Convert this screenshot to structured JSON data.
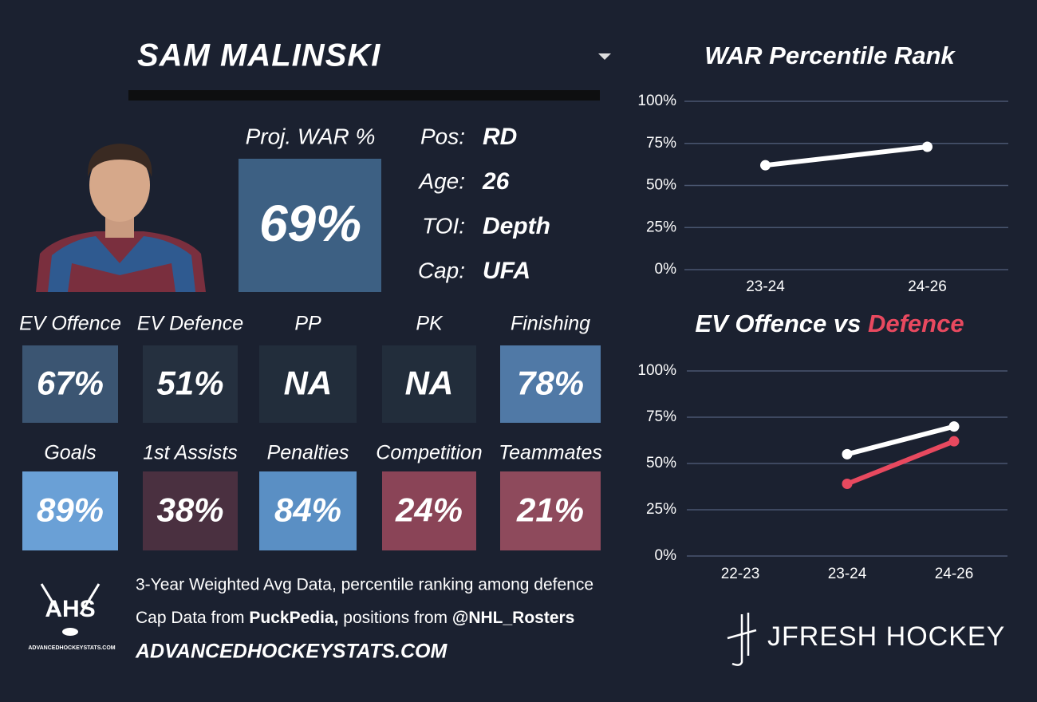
{
  "header": {
    "player": "SAM MALINSKI"
  },
  "war_box": {
    "label": "Proj. WAR %",
    "value": "69%",
    "color": "#3d6083"
  },
  "info": [
    {
      "label": "Pos:",
      "value": "RD"
    },
    {
      "label": "Age:",
      "value": "26"
    },
    {
      "label": "TOI:",
      "value": "Depth"
    },
    {
      "label": "Cap:",
      "value": "UFA"
    }
  ],
  "tiles": [
    [
      {
        "label": "EV Offence",
        "value": "67%",
        "color": "#3b5572"
      },
      {
        "label": "EV Defence",
        "value": "51%",
        "color": "#25303f"
      },
      {
        "label": "PP",
        "value": "NA",
        "color": "#222d3b"
      },
      {
        "label": "PK",
        "value": "NA",
        "color": "#222d3b"
      },
      {
        "label": "Finishing",
        "value": "78%",
        "color": "#5079a6"
      }
    ],
    [
      {
        "label": "Goals",
        "value": "89%",
        "color": "#6aa0d6"
      },
      {
        "label": "1st Assists",
        "value": "38%",
        "color": "#4a3040"
      },
      {
        "label": "Penalties",
        "value": "84%",
        "color": "#5a8fc4"
      },
      {
        "label": "Competition",
        "value": "24%",
        "color": "#8a4457"
      },
      {
        "label": "Teammates",
        "value": "21%",
        "color": "#8e4a5c"
      }
    ]
  ],
  "footer": {
    "logo": "AHS",
    "logo_sub": "ADVANCEDHOCKEYSTATS.COM",
    "line1": "3-Year Weighted Avg Data, percentile ranking among defence",
    "line2": [
      "Cap Data from ",
      "PuckPedia,",
      " positions from ",
      "@NHL_Rosters"
    ],
    "site": "ADVANCEDHOCKEYSTATS.COM",
    "brand": "JFRESH HOCKEY"
  },
  "chart_data": [
    {
      "type": "line",
      "title": "WAR Percentile Rank",
      "categories": [
        "23-24",
        "24-26"
      ],
      "series": [
        {
          "color": "#ffffff",
          "values": [
            62,
            73
          ]
        }
      ],
      "ylim": [
        0,
        100
      ],
      "yticks": [
        {
          "value": 0,
          "label": "0%"
        },
        {
          "value": 25,
          "label": "25%"
        },
        {
          "value": 50,
          "label": "50%"
        },
        {
          "value": 75,
          "label": "75%"
        },
        {
          "value": 100,
          "label": "100%"
        }
      ],
      "grid": true
    },
    {
      "type": "line",
      "title": "EV Offence vs ",
      "title_highlight": "Defence",
      "title_highlight_color": "#e8495f",
      "categories": [
        "22-23",
        "23-24",
        "24-26"
      ],
      "series": [
        {
          "color": "#ffffff",
          "values": [
            null,
            55,
            70
          ]
        },
        {
          "color": "#e8495f",
          "values": [
            null,
            39,
            62
          ]
        }
      ],
      "ylim": [
        0,
        100
      ],
      "yticks": [
        {
          "value": 0,
          "label": "0%"
        },
        {
          "value": 25,
          "label": "25%"
        },
        {
          "value": 50,
          "label": "50%"
        },
        {
          "value": 75,
          "label": "75%"
        },
        {
          "value": 100,
          "label": "100%"
        }
      ],
      "grid": true
    }
  ]
}
